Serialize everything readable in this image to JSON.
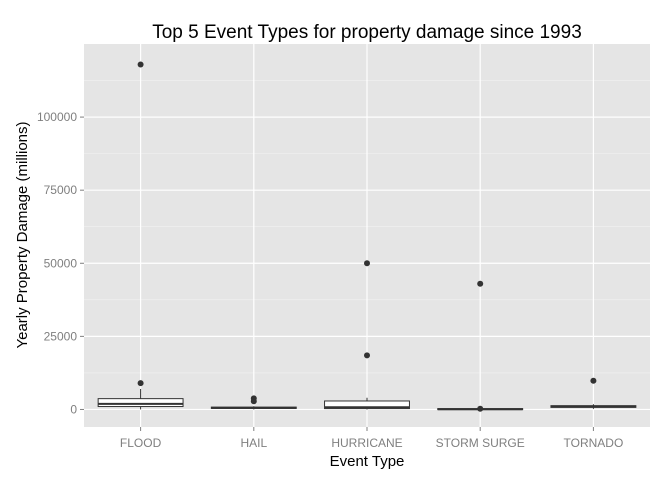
{
  "chart_data": {
    "type": "boxplot",
    "title": "Top 5 Event Types for property damage since 1993",
    "xlabel": "Event Type",
    "ylabel": "Yearly Property Damage (millions)",
    "ylim": [
      -6000,
      125000
    ],
    "yticks": [
      0,
      25000,
      50000,
      75000,
      100000
    ],
    "ytick_labels": [
      "0",
      "25000",
      "50000",
      "75000",
      "100000"
    ],
    "grid": true,
    "legend": "none",
    "categories": [
      "FLOOD",
      "HAIL",
      "HURRICANE",
      "STORM SURGE",
      "TORNADO"
    ],
    "boxes": [
      {
        "category": "FLOOD",
        "whisker_low": 20,
        "q1": 1000,
        "median": 1900,
        "q3": 3700,
        "whisker_high": 7000,
        "outliers": [
          118000,
          9000
        ]
      },
      {
        "category": "HAIL",
        "whisker_low": 10,
        "q1": 350,
        "median": 550,
        "q3": 800,
        "whisker_high": 1100,
        "outliers": [
          3800,
          2800
        ]
      },
      {
        "category": "HURRICANE",
        "whisker_low": 0,
        "q1": 300,
        "median": 750,
        "q3": 2900,
        "whisker_high": 4000,
        "outliers": [
          50000,
          18500
        ]
      },
      {
        "category": "STORM SURGE",
        "whisker_low": 0,
        "q1": 20,
        "median": 60,
        "q3": 300,
        "whisker_high": 600,
        "outliers": [
          43000,
          250
        ]
      },
      {
        "category": "TORNADO",
        "whisker_low": 200,
        "q1": 700,
        "median": 1000,
        "q3": 1300,
        "whisker_high": 1800,
        "outliers": [
          9800
        ]
      }
    ],
    "colors": {
      "panel": "#e5e5e5",
      "grid_major": "#ffffff",
      "grid_minor": "#f2f2f2",
      "box_fill": "#ffffff",
      "box_line": "#333333",
      "outlier": "#333333"
    }
  }
}
